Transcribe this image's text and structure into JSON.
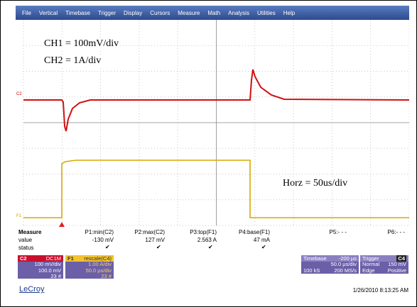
{
  "menu": [
    "File",
    "Vertical",
    "Timebase",
    "Trigger",
    "Display",
    "Cursors",
    "Measure",
    "Math",
    "Analysis",
    "Utilities",
    "Help"
  ],
  "grid_labels": {
    "c2": "C2",
    "f1": "F1"
  },
  "annotations": [
    "CH1 = 100mV/div",
    "CH2 = 1A/div",
    "Horz = 50us/div"
  ],
  "measure": {
    "header": [
      "Measure",
      "P1:min(C2)",
      "P2:max(C2)",
      "P3:top(F1)",
      "P4:base(F1)",
      "P5:- - -",
      "P6:- - -"
    ],
    "value_row": {
      "label": "value",
      "cells": [
        "-130 mV",
        "127 mV",
        "2.563 A",
        "47 mA"
      ]
    },
    "status_row": {
      "label": "status"
    }
  },
  "channels": [
    {
      "label": "C2",
      "title": "DC1M",
      "lines": [
        "100 mV/div",
        "100.0 mV",
        "23 #"
      ]
    },
    {
      "label": "F1",
      "title": "rescale(C4)",
      "lines": [
        "1.00 A/div",
        "50.0 µs/div",
        "23 #"
      ]
    }
  ],
  "timebase": {
    "label": "Timebase",
    "delay": "-200 µs",
    "per_div": "50.0 µs/div",
    "samples": "100 kS",
    "rate": "200 MS/s"
  },
  "trigger": {
    "label": "Trigger",
    "source": "C4",
    "mode": "Normal",
    "level": "150 mV",
    "type": "Edge",
    "slope": "Positive"
  },
  "footer": {
    "logo": "LeCroy",
    "timestamp": "1/26/2010 8:13:25 AM"
  }
}
